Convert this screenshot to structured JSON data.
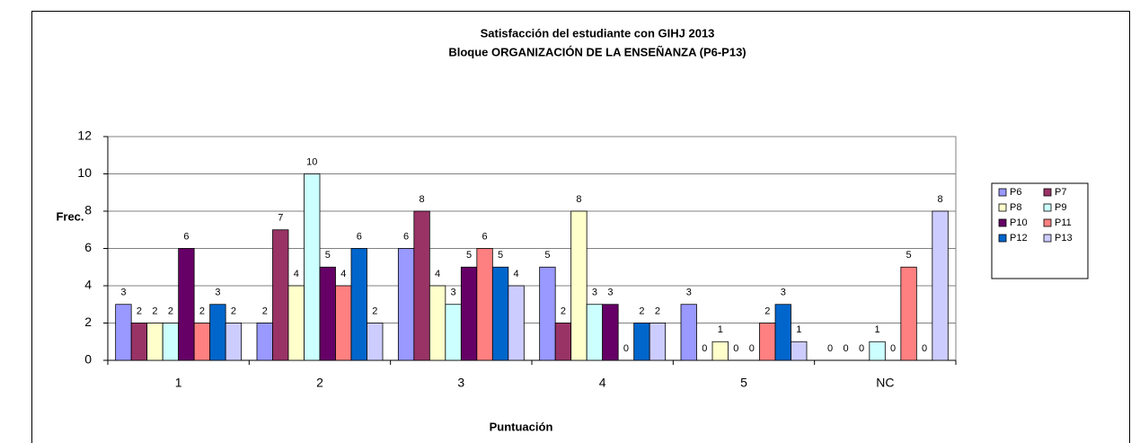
{
  "chart_data": {
    "type": "bar",
    "title": "Satisfacción del estudiante con GIHJ 2013",
    "subtitle": "Bloque ORGANIZACIÓN DE LA ENSEÑANZA (P6-P13)",
    "x_label": "Puntuación",
    "y_label": "Frec.",
    "categories": [
      "1",
      "2",
      "3",
      "4",
      "5",
      "NC"
    ],
    "series": [
      {
        "name": "P6",
        "color": "#9999ff",
        "values": [
          3,
          2,
          6,
          5,
          3,
          0
        ]
      },
      {
        "name": "P7",
        "color": "#993366",
        "values": [
          2,
          7,
          8,
          2,
          0,
          0
        ]
      },
      {
        "name": "P8",
        "color": "#ffffcc",
        "values": [
          2,
          4,
          4,
          8,
          1,
          0
        ]
      },
      {
        "name": "P9",
        "color": "#ccffff",
        "values": [
          2,
          10,
          3,
          3,
          0,
          1
        ]
      },
      {
        "name": "P10",
        "color": "#660066",
        "values": [
          6,
          5,
          5,
          3,
          0,
          0
        ]
      },
      {
        "name": "P11",
        "color": "#ff8080",
        "values": [
          2,
          4,
          6,
          0,
          2,
          5
        ]
      },
      {
        "name": "P12",
        "color": "#0066cc",
        "values": [
          3,
          6,
          5,
          2,
          3,
          0
        ]
      },
      {
        "name": "P13",
        "color": "#ccccff",
        "values": [
          2,
          2,
          4,
          2,
          1,
          8
        ]
      }
    ],
    "ylim": [
      0,
      12
    ],
    "yticks": [
      0,
      2,
      4,
      6,
      8,
      10,
      12
    ],
    "grid": true,
    "legend": "right"
  }
}
